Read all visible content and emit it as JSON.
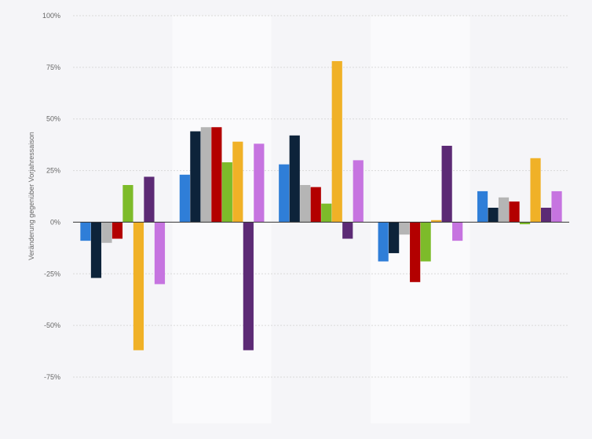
{
  "chart_data": {
    "type": "bar",
    "title": "",
    "xlabel": "",
    "ylabel": "Veränderung gegenüber Vorjahressaison",
    "ylim": [
      -75,
      100
    ],
    "yticks": [
      100,
      75,
      50,
      25,
      0,
      -25,
      -50,
      -75
    ],
    "ytick_labels": [
      "100%",
      "75%",
      "50%",
      "25%",
      "0%",
      "-25%",
      "-50%",
      "-75%"
    ],
    "grid": true,
    "legend": "none",
    "colors": [
      "#2f7ed8",
      "#0d233a",
      "#b5b5b5",
      "#b30000",
      "#7dbb2a",
      "#f0b127",
      "#5c2a75",
      "#c674e0"
    ],
    "groups": [
      {
        "values": [
          -9,
          -27,
          -10,
          -8,
          18,
          -62,
          22,
          -30
        ]
      },
      {
        "values": [
          23,
          44,
          46,
          46,
          29,
          39,
          -62,
          38
        ]
      },
      {
        "values": [
          28,
          42,
          18,
          17,
          9,
          78,
          -8,
          30
        ]
      },
      {
        "values": [
          -19,
          -15,
          -6,
          -29,
          -19,
          1,
          37,
          -9
        ]
      },
      {
        "values": [
          15,
          7,
          12,
          10,
          -1,
          31,
          7,
          15
        ]
      }
    ]
  }
}
